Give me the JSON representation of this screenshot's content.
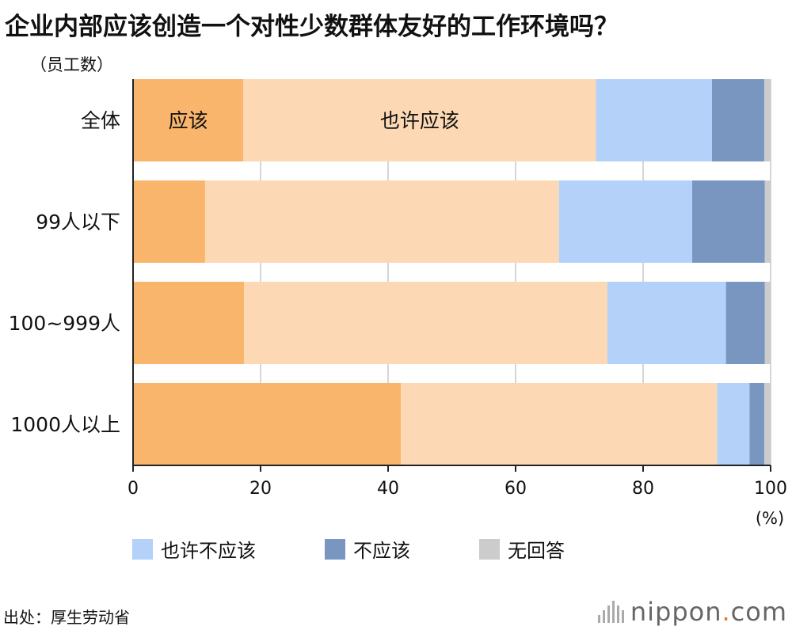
{
  "title": "企业内部应该创造一个对性少数群体友好的工作环境吗？",
  "unit_label": "（员工数）",
  "x_unit": "(%)",
  "source": "出处：厚生劳动省",
  "brand": {
    "name": "nippon",
    "dot": ".",
    "suffix": "com"
  },
  "colors": {
    "should": "#f9b56c",
    "maybe_should": "#fcd9b4",
    "maybe_not": "#b3d1f9",
    "should_not": "#7896bf",
    "no_answer": "#cccccc",
    "grid": "#c8c8c8",
    "axis": "#222222"
  },
  "chart_data": {
    "type": "bar",
    "orientation": "horizontal",
    "stacked": true,
    "categories": [
      "全体",
      "99人以下",
      "100~999人",
      "1000人以上"
    ],
    "series": [
      {
        "key": "should",
        "name": "应该",
        "values": [
          17.3,
          11.3,
          17.4,
          42.0
        ]
      },
      {
        "key": "maybe_should",
        "name": "也许应该",
        "values": [
          55.3,
          55.5,
          57.0,
          49.6
        ]
      },
      {
        "key": "maybe_not",
        "name": "也许不应该",
        "values": [
          18.2,
          20.9,
          18.6,
          5.1
        ]
      },
      {
        "key": "should_not",
        "name": "不应该",
        "values": [
          8.2,
          11.4,
          6.1,
          2.3
        ]
      },
      {
        "key": "no_answer",
        "name": "无回答",
        "values": [
          1.0,
          0.9,
          0.9,
          1.0
        ]
      }
    ],
    "inline_labels": [
      {
        "category": "全体",
        "series": "should",
        "text": "应该"
      },
      {
        "category": "全体",
        "series": "maybe_should",
        "text": "也许应该"
      }
    ],
    "xlim": [
      0,
      100
    ],
    "xticks": [
      0,
      20,
      40,
      60,
      80,
      100
    ],
    "grid": true,
    "legend": {
      "placement": "bottom",
      "entries": [
        {
          "series": "maybe_not",
          "label": "也许不应该"
        },
        {
          "series": "should_not",
          "label": "不应该"
        },
        {
          "series": "no_answer",
          "label": "无回答"
        }
      ]
    }
  }
}
